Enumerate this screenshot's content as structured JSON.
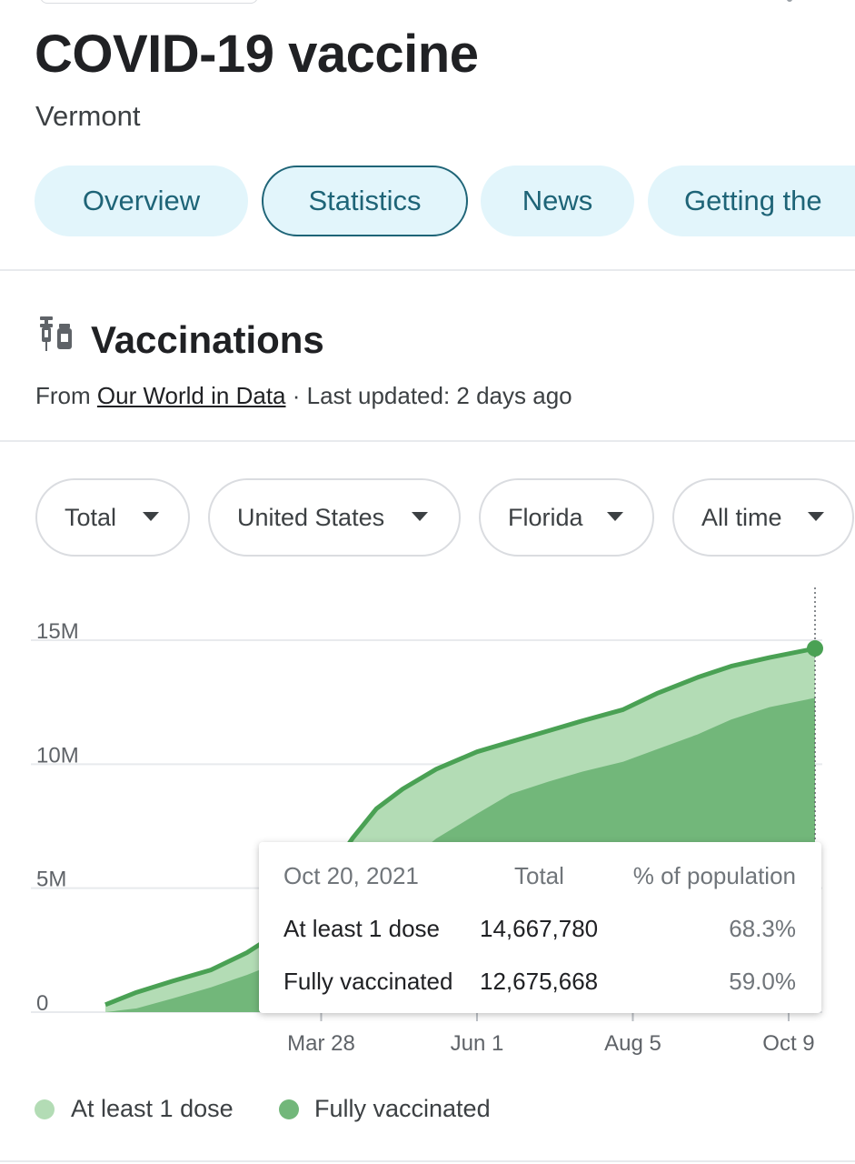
{
  "header": {
    "title": "COVID-19 vaccine",
    "subtitle": "Vermont"
  },
  "tabs": [
    {
      "label": "Overview",
      "active": false
    },
    {
      "label": "Statistics",
      "active": true
    },
    {
      "label": "News",
      "active": false
    },
    {
      "label": "Getting the",
      "active": false
    }
  ],
  "section": {
    "icon": "vaccine-vials-icon",
    "title": "Vaccinations",
    "source_prefix": "From",
    "source_link": "Our World in Data",
    "updated": "· Last updated: 2 days ago"
  },
  "filters": [
    {
      "label": "Total",
      "icon": "dropdown-caret-icon"
    },
    {
      "label": "United States",
      "icon": "dropdown-caret-icon"
    },
    {
      "label": "Florida",
      "icon": "dropdown-caret-icon"
    },
    {
      "label": "All time",
      "icon": "dropdown-caret-icon"
    }
  ],
  "colors": {
    "accent": "#1e6477",
    "tab_bg": "#e2f5fb",
    "dose_light": "#b3dcb5",
    "fully_dark": "#72b77a",
    "line": "#4aa154"
  },
  "chart_data": {
    "type": "area",
    "y_ticks": [
      "0",
      "5M",
      "10M",
      "15M"
    ],
    "ylim": [
      0,
      15000000
    ],
    "x_ticks": [
      "Mar 28",
      "Jun 1",
      "Aug 5",
      "Oct 9"
    ],
    "x_tick_dates": [
      "2021-03-28",
      "2021-06-01",
      "2021-08-05",
      "2021-10-09"
    ],
    "x": [
      "2020-12-28",
      "2021-01-10",
      "2021-01-25",
      "2021-02-10",
      "2021-02-25",
      "2021-03-10",
      "2021-03-20",
      "2021-04-01",
      "2021-04-10",
      "2021-04-20",
      "2021-05-01",
      "2021-05-15",
      "2021-06-01",
      "2021-06-15",
      "2021-07-01",
      "2021-07-15",
      "2021-08-01",
      "2021-08-15",
      "2021-09-01",
      "2021-09-15",
      "2021-10-01",
      "2021-10-20"
    ],
    "series": [
      {
        "name": "At least 1 dose",
        "values": [
          300000,
          800000,
          1250000,
          1700000,
          2400000,
          3200000,
          4200000,
          5700000,
          7000000,
          8200000,
          9000000,
          9800000,
          10500000,
          10900000,
          11350000,
          11750000,
          12200000,
          12850000,
          13500000,
          13950000,
          14300000,
          14667780
        ]
      },
      {
        "name": "Fully vaccinated",
        "values": [
          0,
          150000,
          550000,
          1000000,
          1500000,
          2000000,
          2500000,
          3100000,
          3900000,
          4800000,
          5900000,
          7000000,
          8000000,
          8800000,
          9300000,
          9700000,
          10100000,
          10600000,
          11200000,
          11800000,
          12300000,
          12675668
        ]
      }
    ],
    "legend": [
      "At least 1 dose",
      "Fully vaccinated"
    ],
    "legend_position": "bottom",
    "grid": true
  },
  "tooltip": {
    "date": "Oct 20, 2021",
    "col_total": "Total",
    "col_pct": "% of population",
    "rows": [
      {
        "label": "At least 1 dose",
        "total": "14,667,780",
        "pct": "68.3%"
      },
      {
        "label": "Fully vaccinated",
        "total": "12,675,668",
        "pct": "59.0%"
      }
    ]
  }
}
